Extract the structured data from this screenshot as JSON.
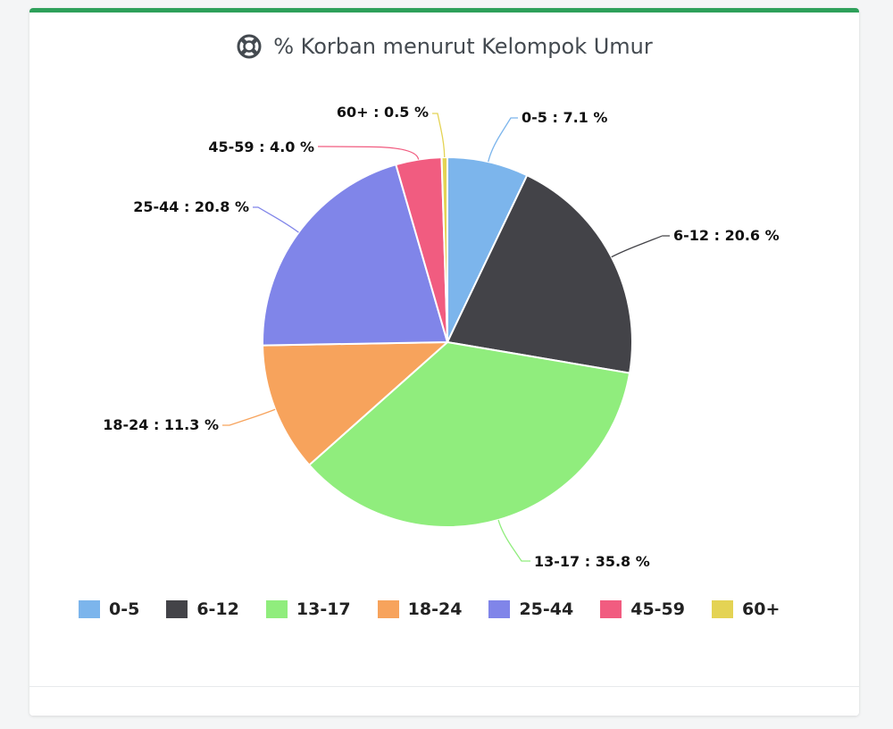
{
  "header": {
    "title": "% Korban menurut Kelompok Umur",
    "icon": "life-ring-icon"
  },
  "chart_data": {
    "type": "pie",
    "title": "% Korban menurut Kelompok Umur",
    "legend_position": "bottom",
    "slices": [
      {
        "label": "0-5",
        "value": 7.1,
        "display": "0-5 : 7.1 %",
        "color": "#7cb5ec"
      },
      {
        "label": "6-12",
        "value": 20.6,
        "display": "6-12 : 20.6 %",
        "color": "#434348"
      },
      {
        "label": "13-17",
        "value": 35.8,
        "display": "13-17 : 35.8 %",
        "color": "#90ed7d"
      },
      {
        "label": "18-24",
        "value": 11.3,
        "display": "18-24 : 11.3 %",
        "color": "#f7a35c"
      },
      {
        "label": "25-44",
        "value": 20.8,
        "display": "25-44 : 20.8 %",
        "color": "#8085e9"
      },
      {
        "label": "45-59",
        "value": 4.0,
        "display": "45-59 : 4.0 %",
        "color": "#f15c80"
      },
      {
        "label": "60+",
        "value": 0.5,
        "display": "60+ : 0.5 %",
        "color": "#e4d354"
      }
    ]
  }
}
